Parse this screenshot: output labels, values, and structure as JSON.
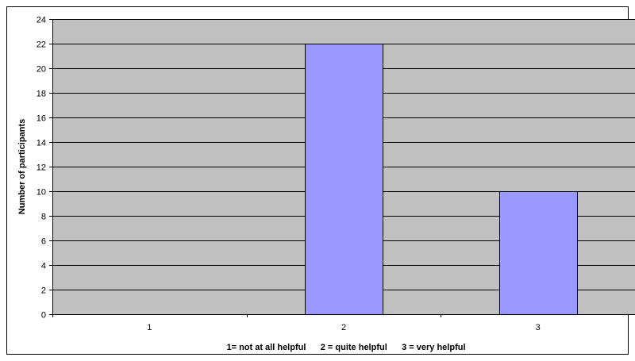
{
  "chart_data": {
    "type": "bar",
    "categories": [
      "1",
      "2",
      "3"
    ],
    "values": [
      0,
      22,
      10
    ],
    "title": "",
    "xlabel": "1= not at all helpful      2 = quite helpful      3 = very helpful",
    "ylabel": "Number of participants",
    "ylim": [
      0,
      24
    ],
    "yticks": [
      0,
      2,
      4,
      6,
      8,
      10,
      12,
      14,
      16,
      18,
      20,
      22,
      24
    ],
    "grid": true,
    "legend": "none",
    "colors": {
      "plot_background": "#c0c0c0",
      "bar_fill": "#9999ff",
      "bar_stroke": "#000000",
      "gridline": "#000000"
    }
  }
}
